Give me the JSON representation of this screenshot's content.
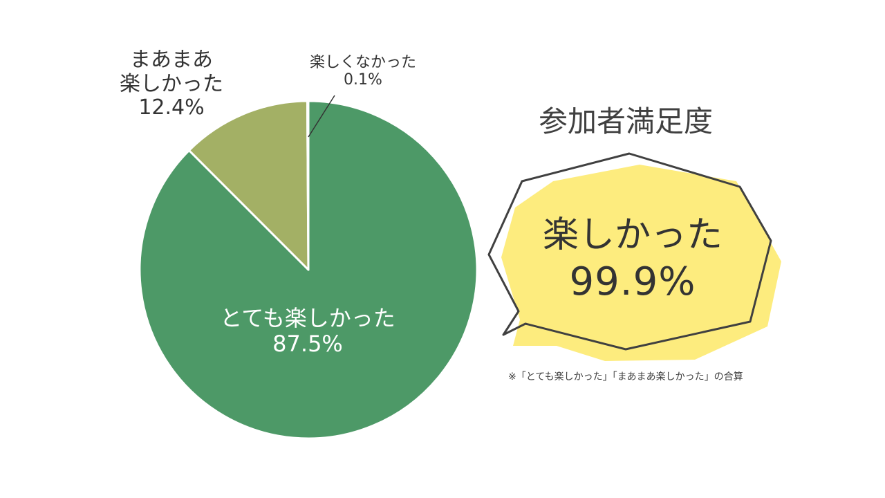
{
  "chart_data": {
    "type": "pie",
    "slices": [
      {
        "label": "とても楽しかった",
        "value": 87.5,
        "value_label": "87.5%",
        "color": "#4d9967"
      },
      {
        "label_lines": [
          "まあまあ",
          "楽しかった"
        ],
        "value": 12.4,
        "value_label": "12.4%",
        "color": "#a3b065"
      },
      {
        "label": "楽しくなかった",
        "value": 0.1,
        "value_label": "0.1%",
        "color": "#b8cc88"
      }
    ]
  },
  "title": "参加者満足度",
  "callout": {
    "label": "楽しかった",
    "value": "99.9%",
    "fill_color": "#fdec7e",
    "stroke_color": "#404040"
  },
  "note": "※「とても楽しかった」「まあまあ楽しかった」の合算"
}
